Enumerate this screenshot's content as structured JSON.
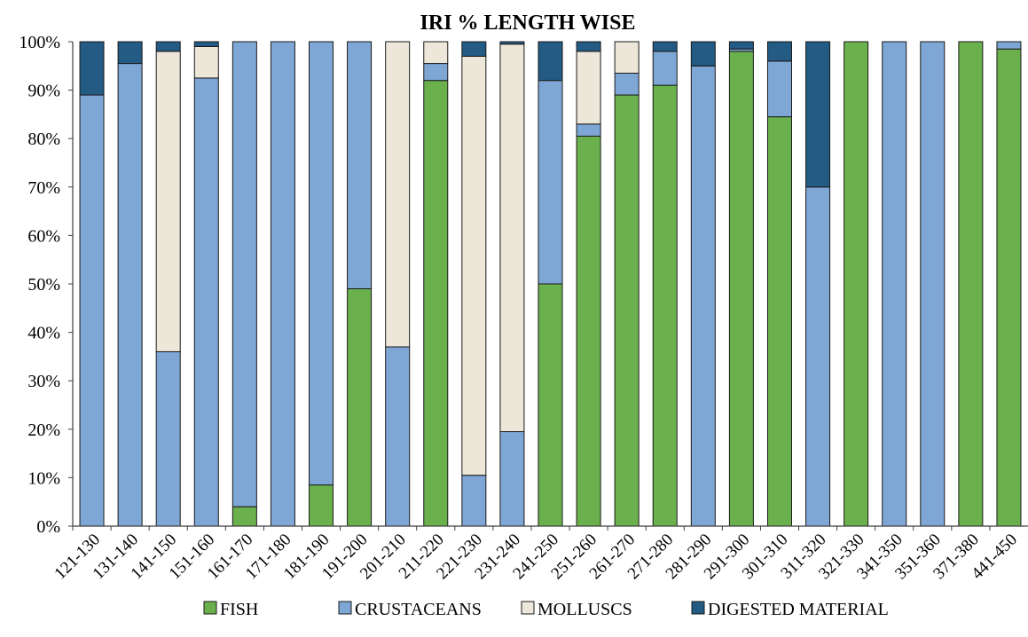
{
  "chart_data": {
    "type": "bar",
    "stacked": true,
    "title": "IRI % LENGTH WISE",
    "xlabel": "",
    "ylabel": "",
    "ylim": [
      0,
      100
    ],
    "y_ticks": [
      "0%",
      "10%",
      "20%",
      "30%",
      "40%",
      "50%",
      "60%",
      "70%",
      "80%",
      "90%",
      "100%"
    ],
    "grid": false,
    "legend_position": "bottom",
    "categories": [
      "121-130",
      "131-140",
      "141-150",
      "151-160",
      "161-170",
      "171-180",
      "181-190",
      "191-200",
      "201-210",
      "211-220",
      "221-230",
      "231-240",
      "241-250",
      "251-260",
      "261-270",
      "271-280",
      "281-290",
      "291-300",
      "301-310",
      "311-320",
      "321-330",
      "341-350",
      "351-360",
      "371-380",
      "441-450"
    ],
    "series": [
      {
        "name": "FISH",
        "color": "#6ab04c",
        "values": [
          0,
          0,
          0,
          0,
          4,
          0,
          8.5,
          49,
          0,
          92,
          0,
          0,
          50,
          80.5,
          89,
          91,
          0,
          98,
          84.5,
          0,
          100,
          0,
          0,
          100,
          98.5
        ]
      },
      {
        "name": "CRUSTACEANS",
        "color": "#7fa7d5",
        "values": [
          89,
          95.5,
          36,
          92.5,
          96,
          100,
          91.5,
          51,
          37,
          3.5,
          10.5,
          19.5,
          42,
          2.5,
          4.5,
          7,
          95,
          0.5,
          11.5,
          70,
          0,
          100,
          100,
          0,
          1.5
        ]
      },
      {
        "name": "MOLLUSCS",
        "color": "#ede7da",
        "values": [
          0,
          0,
          62,
          6.5,
          0,
          0,
          0,
          0,
          63,
          4.5,
          86.5,
          80,
          0,
          15,
          6.5,
          0,
          0,
          0,
          0,
          0,
          0,
          0,
          0,
          0,
          0
        ]
      },
      {
        "name": "DIGESTED MATERIAL",
        "color": "#235b84",
        "values": [
          11,
          4.5,
          2,
          1,
          0,
          0,
          0,
          0,
          0,
          0,
          3,
          0.5,
          8,
          2,
          0,
          2,
          5,
          1.5,
          4,
          30,
          0,
          0,
          0,
          0,
          0
        ]
      }
    ]
  }
}
